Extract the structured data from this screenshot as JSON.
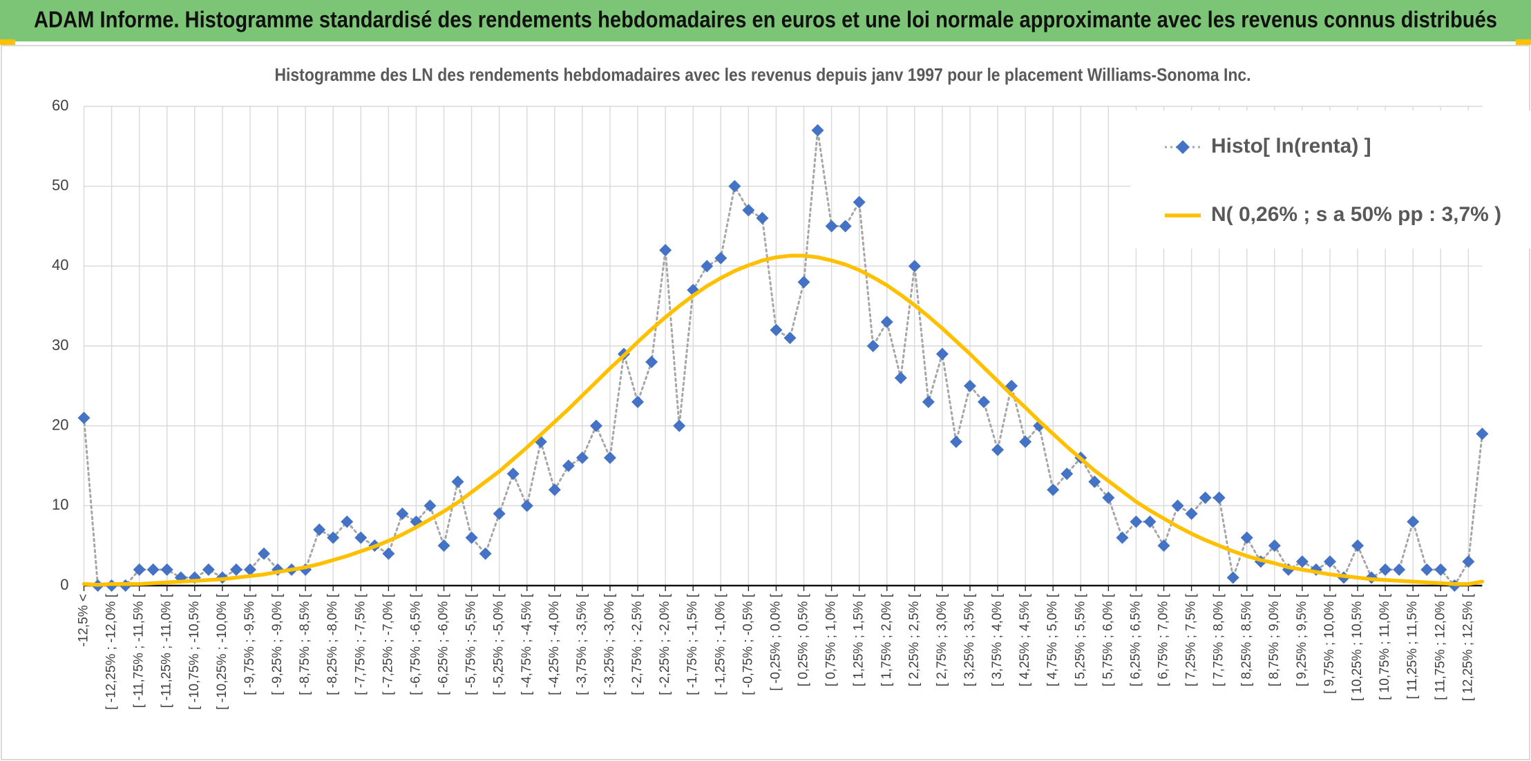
{
  "chart_data": {
    "type": "line",
    "header": "ADAM Informe. Histogramme standardisé des rendements hebdomadaires en euros et une loi normale approximante avec les revenus connus distribués",
    "title": "Histogramme des LN des rendements hebdomadaires avec les revenus depuis janv 1997 pour le placement Williams-Sonoma Inc.",
    "categories": [
      "-12,5% <",
      null,
      "[ -12,25% ; -12,0% [",
      null,
      "[ -11,75% ; -11,5% [",
      null,
      "[ -11,25% ; -11,0% [",
      null,
      "[ -10,75% ; -10,5% [",
      null,
      "[ -10,25% ; -10,0% [",
      null,
      "[ -9,75% ; -9,5% [",
      null,
      "[ -9,25% ; -9,0% [",
      null,
      "[ -8,75% ; -8,5% [",
      null,
      "[ -8,25% ; -8,0% [",
      null,
      "[ -7,75% ; -7,5% [",
      null,
      "[ -7,25% ; -7,0% [",
      null,
      "[ -6,75% ; -6,5% [",
      null,
      "[ -6,25% ; -6,0% [",
      null,
      "[ -5,75% ; -5,5% [",
      null,
      "[ -5,25% ; -5,0% [",
      null,
      "[ -4,75% ; -4,5% [",
      null,
      "[ -4,25% ; -4,0% [",
      null,
      "[ -3,75% ; -3,5% [",
      null,
      "[ -3,25% ; -3,0% [",
      null,
      "[ -2,75% ; -2,5% [",
      null,
      "[ -2,25% ; -2,0% [",
      null,
      "[ -1,75% ; -1,5% [",
      null,
      "[ -1,25% ; -1,0% [",
      null,
      "[ -0,75% ; -0,5% [",
      null,
      "[ -0,25% ; 0,0% [",
      null,
      "[ 0,25% ; 0,5% [",
      null,
      "[ 0,75% ; 1,0% [",
      null,
      "[ 1,25% ; 1,5% [",
      null,
      "[ 1,75% ; 2,0% [",
      null,
      "[ 2,25% ; 2,5% [",
      null,
      "[ 2,75% ; 3,0% [",
      null,
      "[ 3,25% ; 3,5% [",
      null,
      "[ 3,75% ; 4,0% [",
      null,
      "[ 4,25% ; 4,5% [",
      null,
      "[ 4,75% ; 5,0% [",
      null,
      "[ 5,25% ; 5,5% [",
      null,
      "[ 5,75% ; 6,0% [",
      null,
      "[ 6,25% ; 6,5% [",
      null,
      "[ 6,75% ; 7,0% [",
      null,
      "[ 7,25% ; 7,5% [",
      null,
      "[ 7,75% ; 8,0% [",
      null,
      "[ 8,25% ; 8,5% [",
      null,
      "[ 8,75% ; 9,0% [",
      null,
      "[ 9,25% ; 9,5% [",
      null,
      "[ 9,75% ; 10,0% [",
      null,
      "[ 10,25% ; 10,5% [",
      null,
      "[ 10,75% ; 11,0% [",
      null,
      "[ 11,25% ; 11,5% [",
      null,
      "[ 11,75% ; 12,0% [",
      null,
      "[ 12,25% ; 12,5% [",
      null
    ],
    "series": [
      {
        "name": "Histo[ ln(renta) ]",
        "color": "#4472c4",
        "line_color": "#a6a6a6",
        "line_style": "dotted",
        "marker": "diamond",
        "values": [
          21,
          0,
          0,
          0,
          2,
          2,
          2,
          1,
          1,
          2,
          1,
          2,
          2,
          4,
          2,
          2,
          2,
          7,
          6,
          8,
          6,
          5,
          4,
          9,
          8,
          10,
          5,
          13,
          6,
          4,
          9,
          14,
          10,
          18,
          12,
          15,
          16,
          20,
          16,
          29,
          23,
          28,
          42,
          20,
          37,
          40,
          41,
          50,
          47,
          46,
          32,
          31,
          38,
          57,
          45,
          45,
          48,
          30,
          33,
          26,
          40,
          23,
          29,
          18,
          25,
          23,
          17,
          25,
          18,
          20,
          12,
          14,
          16,
          13,
          11,
          6,
          8,
          8,
          5,
          10,
          9,
          11,
          11,
          1,
          6,
          3,
          5,
          2,
          3,
          2,
          3,
          1,
          5,
          1,
          2,
          2,
          8,
          2,
          2,
          0,
          3,
          19
        ]
      },
      {
        "name": "N( 0,26% ; s a 50% pp : 3,7% )",
        "color": "#ffc000",
        "line_style": "solid",
        "marker": "none",
        "values": [
          0.2,
          0.1,
          0.2,
          0.2,
          0.2,
          0.3,
          0.4,
          0.5,
          0.6,
          0.7,
          0.8,
          1.0,
          1.2,
          1.4,
          1.7,
          2.0,
          2.3,
          2.7,
          3.2,
          3.7,
          4.3,
          4.9,
          5.6,
          6.4,
          7.3,
          8.3,
          9.3,
          10.4,
          11.7,
          13.0,
          14.3,
          15.8,
          17.3,
          18.9,
          20.5,
          22.1,
          23.8,
          25.5,
          27.2,
          28.8,
          30.5,
          32.1,
          33.6,
          35.0,
          36.3,
          37.5,
          38.5,
          39.4,
          40.1,
          40.7,
          41.1,
          41.3,
          41.3,
          41.1,
          40.7,
          40.2,
          39.5,
          38.6,
          37.6,
          36.4,
          35.1,
          33.7,
          32.2,
          30.6,
          29.0,
          27.3,
          25.6,
          23.9,
          22.3,
          20.6,
          19.0,
          17.4,
          15.9,
          14.4,
          13.1,
          11.8,
          10.5,
          9.4,
          8.4,
          7.4,
          6.5,
          5.7,
          5.0,
          4.3,
          3.7,
          3.2,
          2.8,
          2.3,
          2.0,
          1.7,
          1.4,
          1.2,
          1.0,
          0.8,
          0.7,
          0.6,
          0.5,
          0.4,
          0.3,
          0.2,
          0.2,
          0.5
        ]
      }
    ],
    "ylim": [
      0,
      60
    ],
    "yticks": [
      0,
      10,
      20,
      30,
      40,
      50,
      60
    ],
    "grid": true,
    "legend": "upper right"
  }
}
